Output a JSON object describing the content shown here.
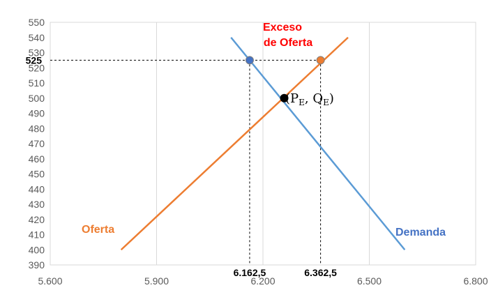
{
  "chart_data": {
    "type": "line",
    "title": "",
    "xlabel": "",
    "ylabel": "",
    "xlim": [
      5600,
      6800
    ],
    "ylim": [
      390,
      550
    ],
    "x_ticks": [
      5600,
      5900,
      6200,
      6500,
      6800
    ],
    "x_tick_labels": [
      "5.600",
      "5.900",
      "6.200",
      "6.500",
      "6.800"
    ],
    "y_ticks": [
      390,
      400,
      410,
      420,
      430,
      440,
      450,
      460,
      470,
      480,
      490,
      500,
      510,
      520,
      530,
      540,
      550
    ],
    "y_tick_labels": [
      "390",
      "400",
      "410",
      "420",
      "430",
      "440",
      "450",
      "460",
      "470",
      "480",
      "490",
      "500",
      "510",
      "520",
      "530",
      "540",
      "550"
    ],
    "grid": "vertical",
    "series": [
      {
        "name": "Oferta",
        "color": "#ED7D31",
        "x": [
          5800,
          6440
        ],
        "y": [
          400,
          540
        ]
      },
      {
        "name": "Demanda",
        "color": "#5B9BD5",
        "x": [
          6110,
          6600
        ],
        "y": [
          540,
          400
        ]
      }
    ],
    "points": [
      {
        "x": 6162.5,
        "y": 525,
        "color": "#4472C4"
      },
      {
        "x": 6362.5,
        "y": 525,
        "color": "#ED7D31"
      },
      {
        "x": 6260,
        "y": 500,
        "color": "#000000"
      }
    ],
    "guide_y": {
      "value": 525,
      "label": "525"
    },
    "guide_x": [
      {
        "value": 6162.5,
        "label": "6.162,5"
      },
      {
        "value": 6362.5,
        "label": "6.362,5"
      }
    ],
    "annotations": {
      "excess_line1": "Exceso",
      "excess_line2": "de Oferta",
      "equilibrium_open": "(P",
      "equilibrium_sub_p": "E",
      "equilibrium_comma": ", Q",
      "equilibrium_sub_q": "E",
      "equilibrium_close": ")",
      "excess_color": "#FF0000"
    }
  }
}
